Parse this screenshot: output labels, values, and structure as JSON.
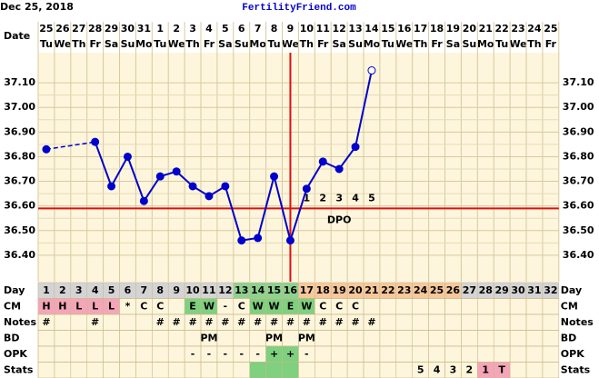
{
  "chart_data": {
    "type": "line",
    "title": "FertilityFriend.com",
    "start_date": "Dec 25, 2018",
    "date_label": "Date",
    "dates": [
      25,
      26,
      27,
      28,
      29,
      30,
      31,
      1,
      2,
      3,
      4,
      5,
      6,
      7,
      8,
      9,
      10,
      11,
      12,
      13,
      14,
      15,
      16,
      17,
      18,
      19,
      20,
      21,
      22,
      23,
      24,
      25
    ],
    "weekdays": [
      "Tu",
      "We",
      "Th",
      "Fr",
      "Sa",
      "Su",
      "Mo",
      "Tu",
      "We",
      "Th",
      "Fr",
      "Sa",
      "Su",
      "Mo",
      "Tu",
      "We",
      "Th",
      "Fr",
      "Sa",
      "Su",
      "Mo",
      "Tu",
      "We",
      "Th",
      "Fr",
      "Sa",
      "Su",
      "Mo",
      "Tu",
      "We",
      "Th",
      "Fr"
    ],
    "series": [
      {
        "color": "#0000cc",
        "connect_gaps": "dashed",
        "open_last_point": true,
        "values": [
          36.83,
          null,
          null,
          36.86,
          36.68,
          36.8,
          36.62,
          36.72,
          36.74,
          36.68,
          36.64,
          36.68,
          36.46,
          36.47,
          36.72,
          36.46,
          36.67,
          36.78,
          36.75,
          36.84,
          37.15,
          null,
          null,
          null,
          null,
          null,
          null,
          null,
          null,
          null,
          null,
          null
        ]
      }
    ],
    "ylim": [
      36.3,
      37.2
    ],
    "yticks": [
      {
        "value": 37.1,
        "label": "37.10"
      },
      {
        "value": 37.0,
        "label": "37.00"
      },
      {
        "value": 36.9,
        "label": "36.90"
      },
      {
        "value": 36.8,
        "label": "36.80"
      },
      {
        "value": 36.7,
        "label": "36.70"
      },
      {
        "value": 36.6,
        "label": "36.60"
      },
      {
        "value": 36.5,
        "label": "36.50"
      },
      {
        "value": 36.4,
        "label": "36.40"
      }
    ],
    "grid": true,
    "coverline": 36.59,
    "ovulation_day": 16,
    "marker_color": "#dd1111",
    "dpo": [
      null,
      null,
      null,
      null,
      null,
      null,
      null,
      null,
      null,
      null,
      null,
      null,
      null,
      null,
      null,
      null,
      1,
      2,
      3,
      4,
      5,
      null,
      null,
      null,
      null,
      null,
      null,
      null,
      null,
      null,
      null,
      null
    ],
    "dpo_label": "DPO",
    "rows": [
      {
        "label": "Day",
        "cells": [
          1,
          2,
          3,
          4,
          5,
          6,
          7,
          8,
          9,
          10,
          11,
          12,
          13,
          14,
          15,
          16,
          17,
          18,
          19,
          20,
          21,
          22,
          23,
          24,
          25,
          26,
          27,
          28,
          29,
          30,
          31,
          32
        ],
        "colors": [
          "#d4d4d4",
          "#d4d4d4",
          "#d4d4d4",
          "#d4d4d4",
          "#d4d4d4",
          "#d4d4d4",
          "#d4d4d4",
          "#d4d4d4",
          "#d4d4d4",
          "#d4d4d4",
          "#d4d4d4",
          "#d4d4d4",
          "#8fd18f",
          "#8fd18f",
          "#8fd18f",
          "#8fd18f",
          "#f6c89c",
          "#f6c89c",
          "#f6c89c",
          "#f6c89c",
          "#f6c89c",
          "#f6c89c",
          "#f6c89c",
          "#f6c89c",
          "#f6c89c",
          "#f6c89c",
          "#d4d4d4",
          "#d4d4d4",
          "#d4d4d4",
          "#d4d4d4",
          "#d4d4d4",
          "#d4d4d4"
        ]
      },
      {
        "label": "CM",
        "cells": [
          "H",
          "H",
          "L",
          "L",
          "L",
          "*",
          "C",
          "C",
          null,
          "E",
          "W",
          "-",
          "C",
          "W",
          "W",
          "E",
          "W",
          "C",
          "C",
          "C",
          null,
          null,
          null,
          null,
          null,
          null,
          null,
          null,
          null,
          null,
          null,
          null
        ],
        "colors": [
          "#f4a6b8",
          "#f4a6b8",
          "#f4a6b8",
          "#f4a6b8",
          "#f4a6b8",
          null,
          null,
          null,
          null,
          "#7fd07f",
          "#7fd07f",
          null,
          null,
          "#7fd07f",
          "#7fd07f",
          "#7fd07f",
          "#7fd07f",
          null,
          null,
          null,
          null,
          null,
          null,
          null,
          null,
          null,
          null,
          null,
          null,
          null,
          null,
          null
        ]
      },
      {
        "label": "Notes",
        "cells": [
          "#",
          null,
          null,
          "#",
          null,
          null,
          null,
          "#",
          "#",
          "#",
          "#",
          "#",
          "#",
          "#",
          "#",
          "#",
          "#",
          "#",
          "#",
          "#",
          "#",
          null,
          null,
          null,
          null,
          null,
          null,
          null,
          null,
          null,
          null,
          null
        ]
      },
      {
        "label": "BD",
        "cells": [
          null,
          null,
          null,
          null,
          null,
          null,
          null,
          null,
          null,
          null,
          "PM",
          null,
          null,
          null,
          "PM",
          null,
          "PM",
          null,
          null,
          null,
          null,
          null,
          null,
          null,
          null,
          null,
          null,
          null,
          null,
          null,
          null,
          null
        ]
      },
      {
        "label": "OPK",
        "cells": [
          null,
          null,
          null,
          null,
          null,
          null,
          null,
          null,
          null,
          "-",
          "-",
          "-",
          "-",
          "-",
          "+",
          "+",
          "-",
          null,
          null,
          null,
          null,
          null,
          null,
          null,
          null,
          null,
          null,
          null,
          null,
          null,
          null,
          null
        ],
        "colors": [
          null,
          null,
          null,
          null,
          null,
          null,
          null,
          null,
          null,
          null,
          null,
          null,
          null,
          null,
          "#7fd07f",
          "#7fd07f",
          null,
          null,
          null,
          null,
          null,
          null,
          null,
          null,
          null,
          null,
          null,
          null,
          null,
          null,
          null,
          null
        ]
      },
      {
        "label": "Stats",
        "cells": [
          null,
          null,
          null,
          null,
          null,
          null,
          null,
          null,
          null,
          null,
          null,
          null,
          null,
          null,
          null,
          null,
          null,
          null,
          null,
          null,
          null,
          null,
          null,
          5,
          4,
          3,
          2,
          1,
          "T",
          null,
          null,
          null
        ],
        "colors": [
          null,
          null,
          null,
          null,
          null,
          null,
          null,
          null,
          null,
          null,
          null,
          null,
          null,
          "#7fd07f",
          "#7fd07f",
          "#7fd07f",
          null,
          null,
          null,
          null,
          null,
          null,
          null,
          null,
          null,
          null,
          null,
          "#f4a6b8",
          "#f4a6b8",
          null,
          null,
          null
        ]
      }
    ]
  }
}
